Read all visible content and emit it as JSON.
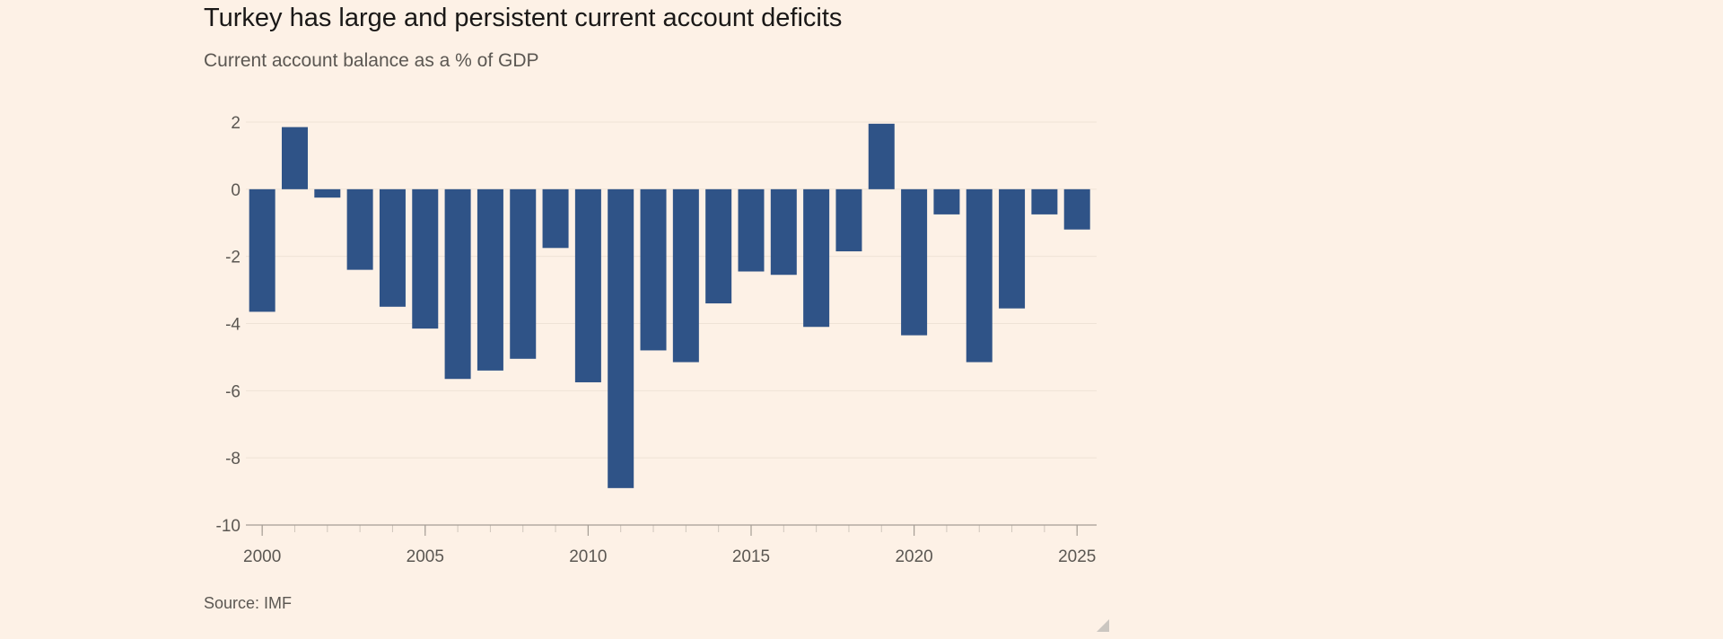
{
  "chart_data": {
    "type": "bar",
    "title": "Turkey has large and persistent current account deficits",
    "subtitle": "Current account balance as a % of GDP",
    "source": "Source: IMF",
    "xlabel": "",
    "ylabel": "",
    "ylim": [
      -10,
      2
    ],
    "yticks": [
      2,
      0,
      -2,
      -4,
      -6,
      -8,
      -10
    ],
    "xticks": [
      2000,
      2005,
      2010,
      2015,
      2020,
      2025
    ],
    "grid": true,
    "bar_color": "#2f5387",
    "x": [
      2000,
      2001,
      2002,
      2003,
      2004,
      2005,
      2006,
      2007,
      2008,
      2009,
      2010,
      2011,
      2012,
      2013,
      2014,
      2015,
      2016,
      2017,
      2018,
      2019,
      2020,
      2021,
      2022,
      2023,
      2024,
      2025
    ],
    "values": [
      -3.65,
      1.85,
      -0.25,
      -2.4,
      -3.5,
      -4.15,
      -5.65,
      -5.4,
      -5.05,
      -1.75,
      -5.75,
      -8.9,
      -4.8,
      -5.15,
      -3.4,
      -2.45,
      -2.55,
      -4.1,
      -1.85,
      1.95,
      -4.35,
      -0.75,
      -5.15,
      -3.55,
      -0.75,
      -1.2
    ]
  }
}
